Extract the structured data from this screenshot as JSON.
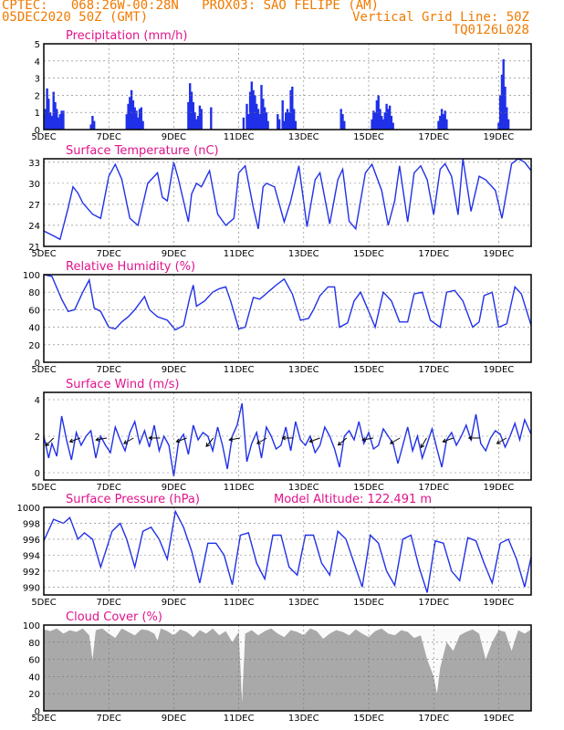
{
  "header": {
    "line1_left": "CPTEC:   068:26W-00:28N   PROX03: SAO FELIPE (AM)",
    "line2_left": "05DEC2020 50Z (GMT)",
    "line2_right": "Vertical Grid Line: 50Z",
    "line3_right": "TQ0126L028"
  },
  "colors": {
    "header": "#f07a00",
    "title": "#e0148c",
    "line": "#2030e8",
    "cloud": "#a8a8a8",
    "grid": "#000000"
  },
  "chart_data": [
    {
      "type": "bar",
      "title": "Precipitation (mm/h)",
      "x_range": [
        0,
        15
      ],
      "ylim": [
        0,
        5
      ],
      "yticks": [
        0,
        1,
        2,
        3,
        4,
        5
      ],
      "xticks": [
        "5DEC",
        "7DEC",
        "9DEC",
        "11DEC",
        "13DEC",
        "15DEC",
        "17DEC",
        "19DEC"
      ],
      "xtick_pos": [
        0,
        2,
        4,
        6,
        8,
        10,
        12,
        14
      ],
      "x": [
        0.05,
        0.1,
        0.15,
        0.2,
        0.25,
        0.3,
        0.35,
        0.4,
        0.45,
        0.5,
        0.55,
        0.6,
        1.45,
        1.5,
        1.55,
        2.55,
        2.6,
        2.65,
        2.7,
        2.75,
        2.8,
        2.85,
        2.9,
        2.95,
        3.0,
        3.05,
        4.45,
        4.5,
        4.55,
        4.6,
        4.65,
        4.7,
        4.75,
        4.8,
        4.85,
        5.15,
        6.15,
        6.25,
        6.3,
        6.35,
        6.4,
        6.45,
        6.5,
        6.55,
        6.6,
        6.65,
        6.7,
        6.75,
        6.8,
        6.85,
        6.9,
        7.2,
        7.25,
        7.35,
        7.4,
        7.45,
        7.5,
        7.55,
        7.6,
        7.65,
        7.7,
        7.75,
        9.15,
        9.2,
        9.25,
        10.1,
        10.15,
        10.2,
        10.25,
        10.3,
        10.35,
        10.4,
        10.45,
        10.5,
        10.55,
        10.6,
        10.65,
        10.7,
        10.75,
        12.15,
        12.2,
        12.25,
        12.3,
        12.35,
        12.4,
        14.0,
        14.05,
        14.1,
        14.15,
        14.2,
        14.25,
        14.3
      ],
      "values": [
        1.2,
        2.4,
        1.8,
        1.0,
        0.8,
        2.2,
        1.6,
        1.2,
        0.7,
        0.9,
        1.1,
        1.1,
        0.3,
        0.8,
        0.5,
        0.9,
        1.5,
        1.9,
        2.3,
        1.7,
        1.3,
        1.1,
        0.7,
        1.2,
        1.3,
        0.5,
        1.6,
        2.7,
        2.2,
        1.6,
        1.0,
        0.6,
        0.8,
        1.4,
        1.2,
        1.3,
        0.7,
        1.5,
        0.9,
        2.2,
        2.8,
        2.3,
        2.0,
        1.5,
        1.2,
        0.9,
        2.6,
        1.8,
        1.3,
        1.0,
        0.5,
        0.9,
        0.6,
        1.7,
        0.5,
        1.0,
        1.2,
        1.0,
        2.3,
        2.5,
        1.2,
        0.5,
        1.2,
        0.9,
        0.5,
        0.6,
        1.1,
        1.0,
        1.7,
        2.0,
        1.2,
        0.8,
        0.6,
        1.0,
        1.5,
        1.2,
        1.4,
        0.8,
        0.4,
        0.5,
        0.8,
        1.2,
        0.9,
        1.1,
        0.6,
        0.4,
        2.0,
        3.2,
        4.1,
        2.5,
        1.3,
        0.6
      ]
    },
    {
      "type": "line",
      "title": "Surface Temperature (nC)",
      "x_range": [
        0,
        15
      ],
      "ylim": [
        21,
        33.5
      ],
      "yticks": [
        21,
        24,
        27,
        30,
        33
      ],
      "xticks": [
        "5DEC",
        "7DEC",
        "9DEC",
        "11DEC",
        "13DEC",
        "15DEC",
        "17DEC",
        "19DEC"
      ],
      "xtick_pos": [
        0,
        2,
        4,
        6,
        8,
        10,
        12,
        14
      ],
      "x": [
        0,
        0.3,
        0.5,
        0.75,
        0.9,
        1.05,
        1.2,
        1.5,
        1.75,
        2.0,
        2.2,
        2.4,
        2.65,
        2.9,
        3.2,
        3.5,
        3.65,
        3.8,
        4.0,
        4.15,
        4.45,
        4.55,
        4.7,
        4.85,
        5.1,
        5.35,
        5.6,
        5.85,
        6.0,
        6.2,
        6.45,
        6.6,
        6.75,
        6.85,
        7.1,
        7.4,
        7.6,
        7.85,
        8.1,
        8.35,
        8.5,
        8.8,
        9.05,
        9.2,
        9.4,
        9.6,
        9.9,
        10.1,
        10.4,
        10.6,
        10.8,
        10.95,
        11.2,
        11.4,
        11.6,
        11.8,
        12.0,
        12.2,
        12.35,
        12.55,
        12.75,
        12.9,
        13.15,
        13.4,
        13.6,
        13.9,
        14.1,
        14.4,
        14.6,
        14.8,
        15.0
      ],
      "values": [
        23.2,
        22.5,
        22.0,
        26.5,
        29.5,
        28.6,
        27.2,
        25.6,
        25.0,
        31.0,
        32.7,
        30.6,
        25.0,
        24.0,
        30.0,
        31.5,
        28.0,
        27.5,
        33.0,
        30.5,
        24.5,
        28.5,
        30.0,
        29.5,
        31.8,
        25.6,
        24.0,
        25.0,
        31.5,
        32.5,
        26.5,
        23.5,
        29.5,
        30.0,
        29.5,
        24.5,
        27.5,
        32.5,
        23.8,
        30.5,
        31.5,
        24.2,
        30.5,
        32.0,
        24.6,
        23.5,
        31.5,
        32.7,
        29.0,
        24.0,
        27.5,
        32.5,
        24.5,
        31.5,
        32.5,
        30.5,
        25.5,
        32.0,
        32.8,
        31.0,
        25.5,
        33.5,
        26.0,
        31.0,
        30.5,
        29.0,
        25.0,
        32.8,
        33.5,
        33.0,
        31.8
      ]
    },
    {
      "type": "line",
      "title": "Relative Humidity (%)",
      "x_range": [
        0,
        15
      ],
      "ylim": [
        0,
        100
      ],
      "yticks": [
        0,
        20,
        40,
        60,
        80,
        100
      ],
      "xticks": [
        "5DEC",
        "7DEC",
        "9DEC",
        "11DEC",
        "13DEC",
        "15DEC",
        "17DEC",
        "19DEC"
      ],
      "xtick_pos": [
        0,
        2,
        4,
        6,
        8,
        10,
        12,
        14
      ],
      "x": [
        0,
        0.25,
        0.55,
        0.75,
        0.95,
        1.2,
        1.4,
        1.55,
        1.75,
        2.0,
        2.2,
        2.4,
        2.6,
        2.8,
        3.1,
        3.25,
        3.5,
        3.8,
        4.05,
        4.3,
        4.5,
        4.6,
        4.7,
        4.95,
        5.2,
        5.4,
        5.6,
        5.75,
        6.0,
        6.2,
        6.45,
        6.65,
        6.9,
        7.15,
        7.4,
        7.65,
        7.9,
        8.15,
        8.3,
        8.5,
        8.75,
        8.95,
        9.1,
        9.35,
        9.55,
        9.75,
        10.0,
        10.2,
        10.45,
        10.7,
        10.95,
        11.2,
        11.4,
        11.65,
        11.9,
        12.2,
        12.4,
        12.65,
        12.9,
        13.2,
        13.4,
        13.55,
        13.8,
        14.0,
        14.25,
        14.5,
        14.7,
        15.0
      ],
      "values": [
        100,
        98,
        72,
        58,
        60,
        80,
        94,
        62,
        58,
        40,
        38,
        46,
        52,
        60,
        75,
        60,
        52,
        48,
        37,
        42,
        75,
        88,
        64,
        70,
        80,
        84,
        86,
        70,
        38,
        40,
        74,
        72,
        80,
        88,
        95,
        78,
        48,
        50,
        60,
        76,
        86,
        86,
        40,
        45,
        70,
        80,
        58,
        40,
        80,
        70,
        46,
        46,
        78,
        80,
        48,
        40,
        80,
        82,
        70,
        40,
        46,
        76,
        80,
        40,
        44,
        86,
        78,
        42
      ],
      "fill_start": 0.6
    },
    {
      "type": "line",
      "title": "Surface Wind (m/s)",
      "x_range": [
        0,
        15
      ],
      "ylim": [
        -0.4,
        4.4
      ],
      "yticks": [
        0,
        2,
        4
      ],
      "xticks": [
        "5DEC",
        "7DEC",
        "9DEC",
        "11DEC",
        "13DEC",
        "15DEC",
        "17DEC",
        "19DEC"
      ],
      "xtick_pos": [
        0,
        2,
        4,
        6,
        8,
        10,
        12,
        14
      ],
      "x": [
        0,
        0.15,
        0.25,
        0.4,
        0.55,
        0.7,
        0.85,
        1.0,
        1.15,
        1.3,
        1.45,
        1.6,
        1.75,
        1.9,
        2.05,
        2.2,
        2.35,
        2.5,
        2.65,
        2.8,
        2.95,
        3.1,
        3.25,
        3.4,
        3.55,
        3.7,
        3.85,
        4.0,
        4.15,
        4.3,
        4.45,
        4.6,
        4.75,
        4.9,
        5.05,
        5.2,
        5.35,
        5.5,
        5.65,
        5.8,
        5.95,
        6.1,
        6.25,
        6.4,
        6.55,
        6.7,
        6.85,
        7.0,
        7.15,
        7.3,
        7.45,
        7.6,
        7.75,
        7.9,
        8.05,
        8.2,
        8.35,
        8.5,
        8.65,
        8.8,
        8.95,
        9.1,
        9.25,
        9.4,
        9.55,
        9.7,
        9.85,
        10.0,
        10.15,
        10.3,
        10.45,
        10.6,
        10.75,
        10.9,
        11.05,
        11.2,
        11.35,
        11.5,
        11.65,
        11.8,
        11.95,
        12.1,
        12.25,
        12.4,
        12.55,
        12.7,
        12.85,
        13.0,
        13.15,
        13.3,
        13.45,
        13.6,
        13.75,
        13.9,
        14.05,
        14.2,
        14.35,
        14.5,
        14.65,
        14.8,
        15.0
      ],
      "values": [
        2.0,
        0.8,
        1.6,
        0.9,
        3.1,
        1.8,
        0.7,
        2.2,
        1.5,
        2.0,
        2.3,
        0.8,
        2.0,
        1.5,
        1.1,
        2.5,
        1.8,
        1.2,
        2.2,
        2.8,
        1.6,
        2.3,
        1.4,
        2.6,
        1.2,
        2.0,
        1.5,
        -0.2,
        1.7,
        2.1,
        1.0,
        2.6,
        1.8,
        2.2,
        2.0,
        1.2,
        2.5,
        1.5,
        0.2,
        2.0,
        2.6,
        3.8,
        0.6,
        1.6,
        2.2,
        0.8,
        2.5,
        2.0,
        1.3,
        1.5,
        2.5,
        1.2,
        2.8,
        1.8,
        1.5,
        2.0,
        1.1,
        1.5,
        2.5,
        2.0,
        1.3,
        0.3,
        2.0,
        2.3,
        1.8,
        2.8,
        1.6,
        2.2,
        1.3,
        1.5,
        2.4,
        2.0,
        1.6,
        0.5,
        1.5,
        2.5,
        1.2,
        2.0,
        0.8,
        1.6,
        2.4,
        1.3,
        0.3,
        1.8,
        2.2,
        1.5,
        2.0,
        2.6,
        1.8,
        3.2,
        1.6,
        1.2,
        1.9,
        2.3,
        2.1,
        1.4,
        2.0,
        2.7,
        1.8,
        2.9,
        2.1
      ]
    },
    {
      "type": "line",
      "title": "Surface Pressure (hPa)",
      "annotation": "Model Altitude: 122.491 m",
      "x_range": [
        0,
        15
      ],
      "ylim": [
        989,
        1000
      ],
      "yticks": [
        990,
        992,
        994,
        996,
        998,
        1000
      ],
      "xticks": [
        "5DEC",
        "7DEC",
        "9DEC",
        "11DEC",
        "13DEC",
        "15DEC",
        "17DEC",
        "19DEC"
      ],
      "xtick_pos": [
        0,
        2,
        4,
        6,
        8,
        10,
        12,
        14
      ],
      "x": [
        0,
        0.3,
        0.6,
        0.8,
        1.05,
        1.25,
        1.5,
        1.75,
        2.1,
        2.35,
        2.55,
        2.8,
        3.05,
        3.3,
        3.55,
        3.8,
        4.05,
        4.3,
        4.55,
        4.8,
        5.05,
        5.3,
        5.55,
        5.8,
        6.05,
        6.3,
        6.55,
        6.8,
        7.05,
        7.3,
        7.55,
        7.8,
        8.05,
        8.3,
        8.55,
        8.8,
        9.05,
        9.3,
        9.55,
        9.8,
        10.05,
        10.3,
        10.55,
        10.8,
        11.05,
        11.3,
        11.55,
        11.8,
        12.05,
        12.3,
        12.55,
        12.8,
        13.05,
        13.3,
        13.55,
        13.8,
        14.05,
        14.3,
        14.55,
        14.8,
        15.0
      ],
      "values": [
        995.8,
        998.5,
        998.0,
        998.7,
        996.0,
        996.8,
        996.0,
        992.5,
        997.0,
        998.0,
        996.0,
        992.5,
        997.0,
        997.5,
        996.0,
        993.5,
        999.5,
        997.5,
        994.5,
        990.5,
        995.5,
        995.5,
        994.0,
        990.3,
        996.5,
        996.8,
        993.0,
        991.0,
        996.5,
        996.5,
        992.5,
        991.5,
        996.5,
        996.5,
        993.0,
        991.5,
        997.0,
        996.0,
        993.0,
        990.0,
        996.5,
        995.5,
        992.0,
        990.2,
        996.0,
        996.5,
        992.5,
        989.3,
        995.8,
        995.5,
        992.0,
        990.8,
        996.2,
        995.8,
        993.0,
        990.5,
        995.5,
        996.0,
        993.5,
        990.0,
        993.8
      ]
    },
    {
      "type": "area",
      "title": "Cloud Cover (%)",
      "x_range": [
        0,
        15
      ],
      "ylim": [
        0,
        100
      ],
      "yticks": [
        0,
        20,
        40,
        60,
        80,
        100
      ],
      "xticks": [
        "5DEC",
        "7DEC",
        "9DEC",
        "11DEC",
        "13DEC",
        "15DEC",
        "17DEC",
        "19DEC"
      ],
      "xtick_pos": [
        0,
        2,
        4,
        6,
        8,
        10,
        12,
        14
      ],
      "x": [
        0,
        0.2,
        0.4,
        0.6,
        0.8,
        1.0,
        1.2,
        1.4,
        1.5,
        1.6,
        1.8,
        2.0,
        2.2,
        2.4,
        2.6,
        2.8,
        3.0,
        3.2,
        3.4,
        3.5,
        3.6,
        3.8,
        4.0,
        4.2,
        4.4,
        4.6,
        4.8,
        5.0,
        5.2,
        5.4,
        5.6,
        5.8,
        6.0,
        6.1,
        6.2,
        6.4,
        6.6,
        6.8,
        7.0,
        7.2,
        7.4,
        7.6,
        7.8,
        8.0,
        8.2,
        8.4,
        8.6,
        8.8,
        9.0,
        9.2,
        9.4,
        9.6,
        9.8,
        10.0,
        10.2,
        10.4,
        10.6,
        10.8,
        11.0,
        11.2,
        11.4,
        11.6,
        11.8,
        12.0,
        12.1,
        12.2,
        12.4,
        12.6,
        12.8,
        13.0,
        13.2,
        13.4,
        13.6,
        13.8,
        14.0,
        14.2,
        14.4,
        14.6,
        14.8,
        15.0
      ],
      "values": [
        95,
        93,
        96,
        90,
        94,
        92,
        96,
        88,
        60,
        94,
        96,
        90,
        85,
        96,
        92,
        88,
        95,
        94,
        90,
        82,
        96,
        93,
        88,
        95,
        92,
        86,
        94,
        90,
        96,
        88,
        93,
        80,
        92,
        10,
        90,
        94,
        88,
        93,
        96,
        90,
        86,
        94,
        92,
        88,
        96,
        93,
        84,
        90,
        94,
        92,
        88,
        95,
        90,
        86,
        93,
        96,
        90,
        88,
        94,
        92,
        85,
        88,
        60,
        40,
        20,
        50,
        80,
        70,
        88,
        92,
        95,
        90,
        60,
        80,
        94,
        92,
        70,
        94,
        90,
        95
      ]
    }
  ]
}
